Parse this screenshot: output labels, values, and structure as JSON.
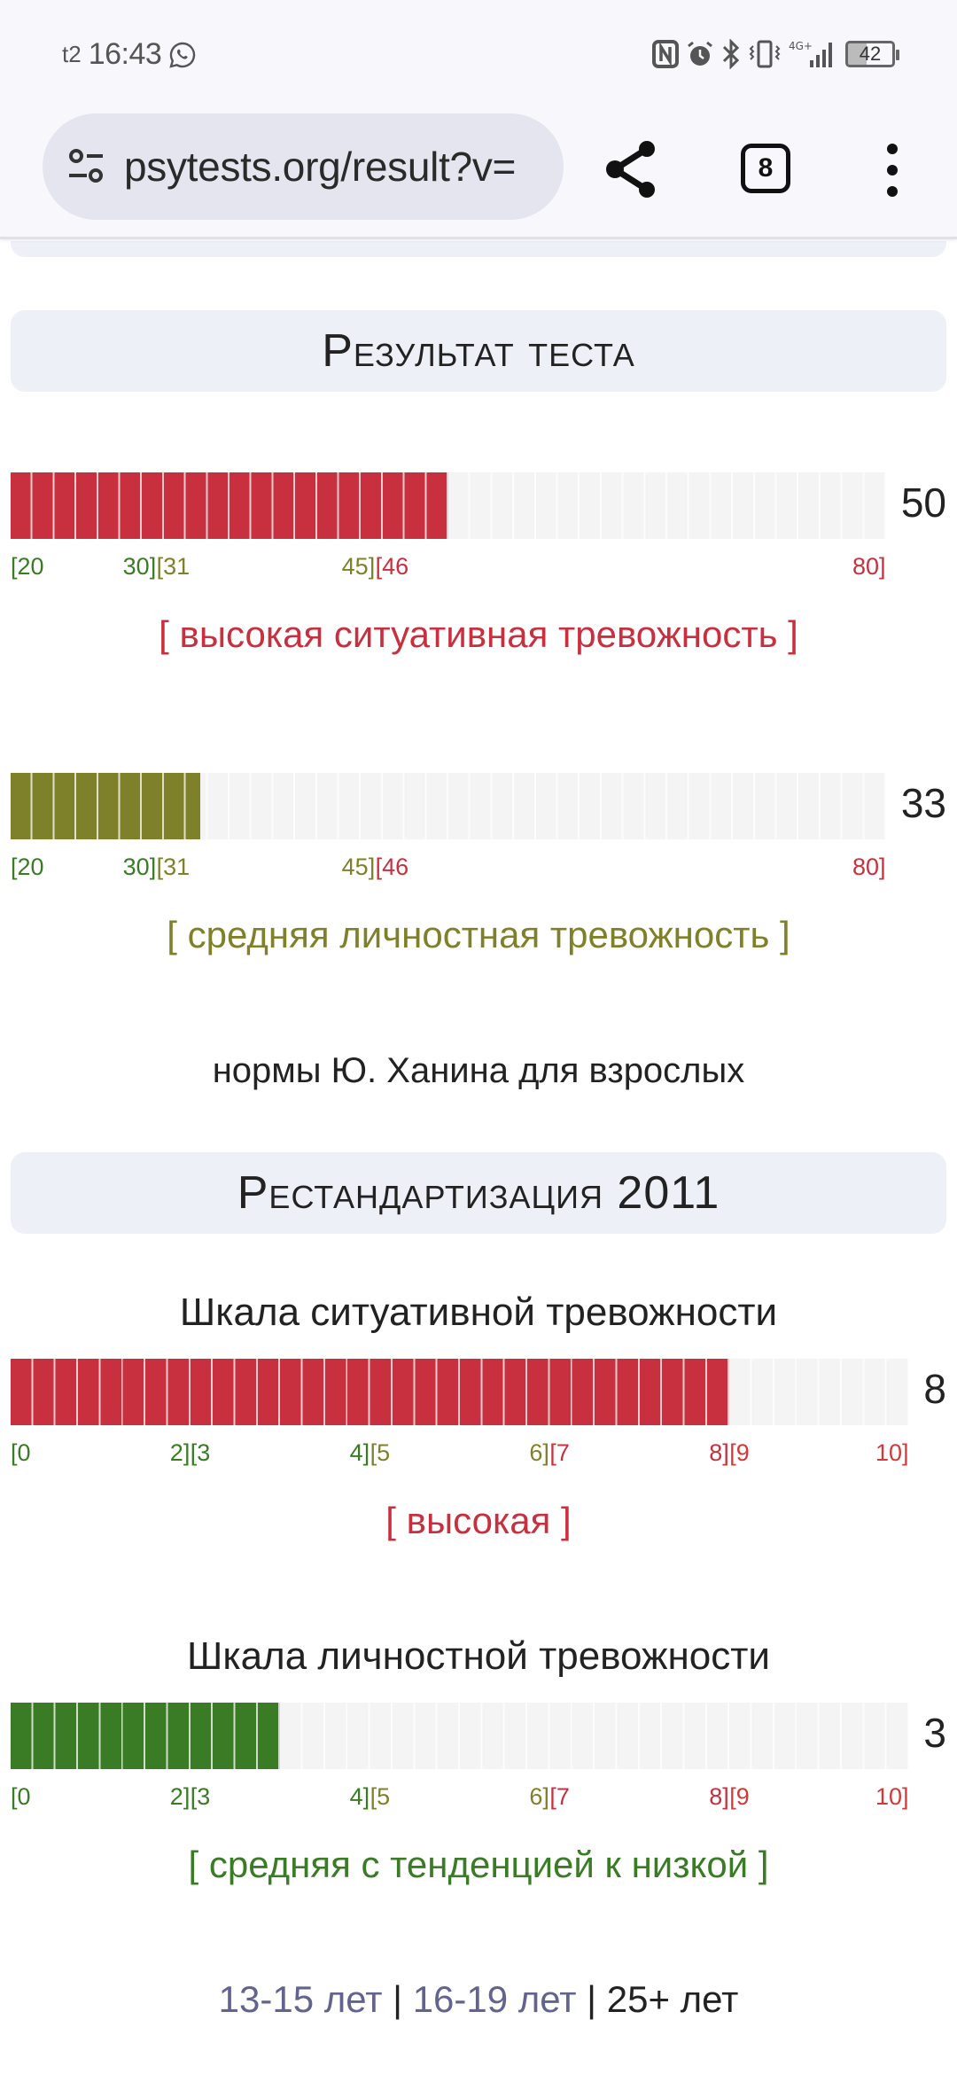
{
  "status_bar": {
    "carrier": "t2",
    "time": "16:43",
    "battery": "42",
    "icons": [
      "whatsapp-icon",
      "nfc-icon",
      "alarm-icon",
      "bluetooth-icon",
      "vibrate-icon",
      "network-4g-plus-icon",
      "signal-icon",
      "battery-icon"
    ]
  },
  "browser": {
    "url": "psytests.org/result?v=",
    "tab_count": "8",
    "icons": [
      "site-settings-icon",
      "share-icon",
      "tabs-icon",
      "more-menu-icon"
    ]
  },
  "colors": {
    "red": "#c8303f",
    "olive": "#7f802a",
    "green": "#3a7c25",
    "empty": "#f4f4f4",
    "header_bg": "#eef0f7",
    "link": "#63638f"
  },
  "section1": {
    "title": "Результат теста",
    "scales": [
      {
        "value": "50",
        "min": 20,
        "max": 80,
        "score": 50,
        "color": "#c8303f",
        "ticks": [
          {
            "label": "[20",
            "pos": 20,
            "color": "#3a7c25"
          },
          {
            "label": "30]",
            "pos": 30,
            "color": "#3a7c25"
          },
          {
            "label": "[31",
            "pos": 31,
            "color": "#7f802a"
          },
          {
            "label": "45]",
            "pos": 45,
            "color": "#7f802a"
          },
          {
            "label": "[46",
            "pos": 46,
            "color": "#c8303f"
          },
          {
            "label": "80]",
            "pos": 80,
            "color": "#c8303f"
          }
        ],
        "verdict": "[ высокая ситуативная тревожность ]",
        "verdict_color": "#c8303f"
      },
      {
        "value": "33",
        "min": 20,
        "max": 80,
        "score": 33,
        "color": "#7f802a",
        "ticks": [
          {
            "label": "[20",
            "pos": 20,
            "color": "#3a7c25"
          },
          {
            "label": "30]",
            "pos": 30,
            "color": "#3a7c25"
          },
          {
            "label": "[31",
            "pos": 31,
            "color": "#7f802a"
          },
          {
            "label": "45]",
            "pos": 45,
            "color": "#7f802a"
          },
          {
            "label": "[46",
            "pos": 46,
            "color": "#c8303f"
          },
          {
            "label": "80]",
            "pos": 80,
            "color": "#c8303f"
          }
        ],
        "verdict": "[ средняя личностная тревожность ]",
        "verdict_color": "#7f802a"
      }
    ],
    "norms_note": "нормы Ю. Ханина для взрослых"
  },
  "section2": {
    "title": "Рестандартизация 2011",
    "scales": [
      {
        "title": "Шкала ситуативной тревожности",
        "value": "8",
        "min": 0,
        "max": 10,
        "score": 8,
        "color": "#c8303f",
        "ticks": [
          {
            "label": "[0",
            "pos": 0,
            "color": "#3a7c25"
          },
          {
            "label": "2]",
            "pos": 2,
            "color": "#3a7c25"
          },
          {
            "label": "[3",
            "pos": 3,
            "color": "#3a7c25"
          },
          {
            "label": "4]",
            "pos": 4,
            "color": "#3a7c25"
          },
          {
            "label": "[5",
            "pos": 5,
            "color": "#7f802a"
          },
          {
            "label": "6]",
            "pos": 6,
            "color": "#7f802a"
          },
          {
            "label": "[7",
            "pos": 7,
            "color": "#c8303f"
          },
          {
            "label": "8]",
            "pos": 8,
            "color": "#c8303f"
          },
          {
            "label": "[9",
            "pos": 9,
            "color": "#d23a3a"
          },
          {
            "label": "10]",
            "pos": 10,
            "color": "#d23a3a"
          }
        ],
        "verdict": "[ высокая ]",
        "verdict_color": "#c8303f"
      },
      {
        "title": "Шкала личностной тревожности",
        "value": "3",
        "min": 0,
        "max": 10,
        "score": 3,
        "color": "#3a7c25",
        "ticks": [
          {
            "label": "[0",
            "pos": 0,
            "color": "#3a7c25"
          },
          {
            "label": "2]",
            "pos": 2,
            "color": "#3a7c25"
          },
          {
            "label": "[3",
            "pos": 3,
            "color": "#3a7c25"
          },
          {
            "label": "4]",
            "pos": 4,
            "color": "#3a7c25"
          },
          {
            "label": "[5",
            "pos": 5,
            "color": "#7f802a"
          },
          {
            "label": "6]",
            "pos": 6,
            "color": "#7f802a"
          },
          {
            "label": "[7",
            "pos": 7,
            "color": "#c8303f"
          },
          {
            "label": "8]",
            "pos": 8,
            "color": "#c8303f"
          },
          {
            "label": "[9",
            "pos": 9,
            "color": "#d23a3a"
          },
          {
            "label": "10]",
            "pos": 10,
            "color": "#d23a3a"
          }
        ],
        "verdict": "[ средняя с тенденцией к низкой ]",
        "verdict_color": "#3a7c25"
      }
    ]
  },
  "age_links": {
    "items": [
      {
        "label": "13-15 лет",
        "link": true
      },
      {
        "label": "16-19 лет",
        "link": true
      },
      {
        "label": "25+ лет",
        "link": false
      }
    ],
    "separator": " | "
  }
}
